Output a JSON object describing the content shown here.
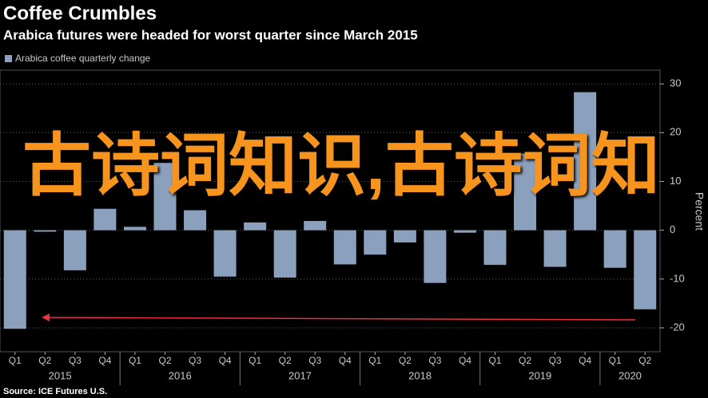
{
  "chart_data": {
    "type": "bar",
    "title": "Coffee Crumbles",
    "subtitle": "Arabica futures were headed for worst quarter since March 2015",
    "source": "Source: ICE Futures U.S.",
    "y_axis_label": "Percent",
    "categories": [
      "Q1",
      "Q2",
      "Q3",
      "Q4",
      "Q1",
      "Q2",
      "Q3",
      "Q4",
      "Q1",
      "Q2",
      "Q3",
      "Q4",
      "Q1",
      "Q2",
      "Q3",
      "Q4",
      "Q1",
      "Q2",
      "Q3",
      "Q4",
      "Q1",
      "Q2"
    ],
    "years": [
      "2015",
      "2016",
      "2017",
      "2018",
      "2019",
      "2020"
    ],
    "series": [
      {
        "name": "Arabica coffee quarterly change",
        "color": "#8aa0bd",
        "values": [
          -20.2,
          -0.3,
          -8.2,
          4.4,
          0.7,
          13.8,
          4.1,
          -9.5,
          1.6,
          -9.7,
          1.9,
          -7.0,
          -5.0,
          -2.5,
          -10.8,
          -0.5,
          -7.1,
          15.7,
          -7.5,
          28.3,
          -7.7,
          -16.2
        ]
      }
    ],
    "ylim": [
      -24.9,
      32.8
    ],
    "yticks": [
      -20,
      -10,
      0,
      10,
      20,
      30
    ],
    "grid": true,
    "watermark": "古诗词知识,古诗词知"
  }
}
